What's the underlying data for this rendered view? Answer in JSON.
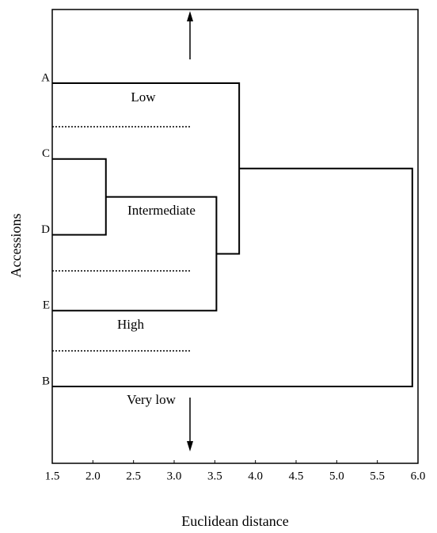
{
  "chart_data": {
    "type": "dendrogram",
    "x_label": "Euclidean distance",
    "y_label": "Accessions",
    "categories": [
      "A",
      "C",
      "D",
      "E",
      "B"
    ],
    "merges": [
      {
        "join": [
          1,
          2
        ],
        "distance": 2.16
      },
      {
        "join": [
          5,
          3
        ],
        "distance": 3.52
      },
      {
        "join": [
          0,
          6
        ],
        "distance": 3.8
      },
      {
        "join": [
          7,
          4
        ],
        "distance": 5.93
      }
    ],
    "annotations": [
      "Low",
      "Intermediate",
      "High",
      "Very low"
    ],
    "xlim": [
      1.5,
      6.0
    ],
    "xticks": [
      1.5,
      {
        "value": 2.0,
        "label": "2.0"
      },
      2.5,
      {
        "value": 3.0,
        "label": "3.0"
      },
      3.5,
      {
        "value": 4.0,
        "label": "4.0"
      },
      4.5,
      {
        "value": 5.0,
        "label": "5.0"
      },
      5.5,
      {
        "value": 6.0,
        "label": "6.0"
      }
    ],
    "color": "#000000"
  }
}
